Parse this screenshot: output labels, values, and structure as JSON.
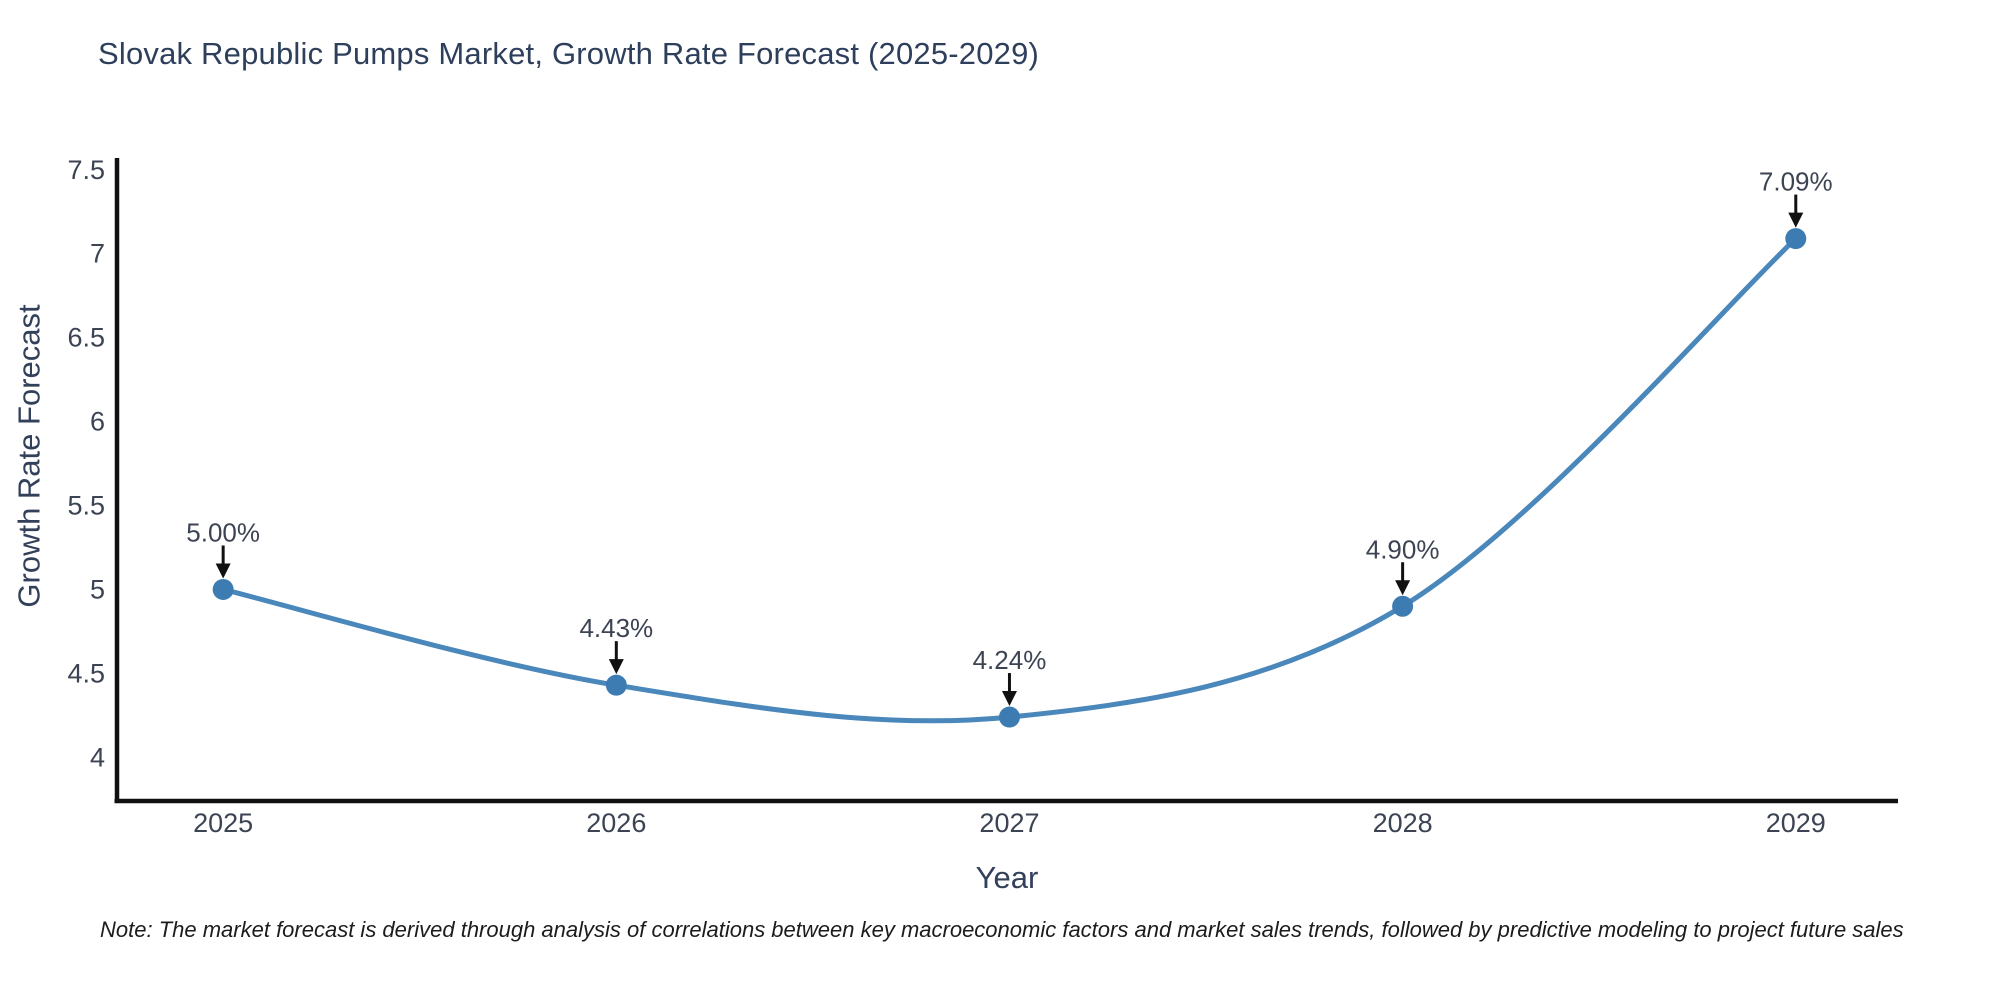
{
  "header": {
    "title": "Slovak Republic Pumps Market, Growth Rate Forecast (2025-2029)"
  },
  "footnote": {
    "text": "Note: The market forecast is derived through analysis of correlations between key macroeconomic factors and market sales trends, followed by predictive modeling to project future sales"
  },
  "chart_data": {
    "type": "line",
    "title": "Slovak Republic Pumps Market, Growth Rate Forecast (2025-2029)",
    "xlabel": "Year",
    "ylabel": "Growth Rate Forecast",
    "x": [
      2025,
      2026,
      2027,
      2028,
      2029
    ],
    "series": [
      {
        "name": "Growth Rate Forecast",
        "values": [
          5.0,
          4.43,
          4.24,
          4.9,
          7.09
        ],
        "point_labels": [
          "5.00%",
          "4.43%",
          "4.24%",
          "4.90%",
          "7.09%"
        ]
      }
    ],
    "xticks": [
      "2025",
      "2026",
      "2027",
      "2028",
      "2029"
    ],
    "yticks": [
      4,
      4.5,
      5,
      5.5,
      6,
      6.5,
      7,
      7.5
    ],
    "xlim": [
      2024.73,
      2029.26
    ],
    "ylim": [
      3.74,
      7.57
    ],
    "line_shape": "spline",
    "grid": false,
    "legend_position": "none",
    "colors": {
      "line": "#4a87bb",
      "marker": "#3d7cb2",
      "axis_spine": "#111111",
      "annotation_arrow": "#111111",
      "tick_text": "#3c4353",
      "title_text": "#2e3f5c"
    }
  }
}
